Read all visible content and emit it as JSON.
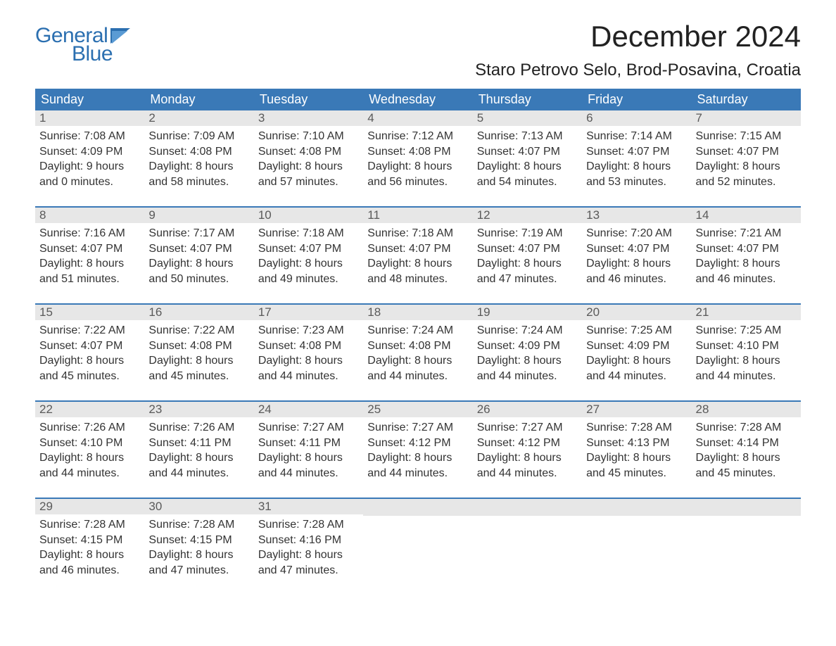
{
  "logo": {
    "general": "General",
    "blue": "Blue",
    "color": "#2b6fb0",
    "flag_color": "#2b6fb0"
  },
  "title": "December 2024",
  "location": "Staro Petrovo Selo, Brod-Posavina, Croatia",
  "colors": {
    "header_bg": "#3a79b7",
    "header_text": "#ffffff",
    "daynum_bg": "#e7e7e7",
    "daynum_text": "#5a5a5a",
    "body_text": "#333333",
    "week_border": "#3a79b7",
    "page_bg": "#ffffff"
  },
  "fonts": {
    "title_size": 42,
    "location_size": 24,
    "header_size": 18,
    "daynum_size": 17,
    "body_size": 16,
    "logo_size": 30
  },
  "day_headers": [
    "Sunday",
    "Monday",
    "Tuesday",
    "Wednesday",
    "Thursday",
    "Friday",
    "Saturday"
  ],
  "weeks": [
    [
      {
        "num": "1",
        "sunrise": "Sunrise: 7:08 AM",
        "sunset": "Sunset: 4:09 PM",
        "dl1": "Daylight: 9 hours",
        "dl2": "and 0 minutes."
      },
      {
        "num": "2",
        "sunrise": "Sunrise: 7:09 AM",
        "sunset": "Sunset: 4:08 PM",
        "dl1": "Daylight: 8 hours",
        "dl2": "and 58 minutes."
      },
      {
        "num": "3",
        "sunrise": "Sunrise: 7:10 AM",
        "sunset": "Sunset: 4:08 PM",
        "dl1": "Daylight: 8 hours",
        "dl2": "and 57 minutes."
      },
      {
        "num": "4",
        "sunrise": "Sunrise: 7:12 AM",
        "sunset": "Sunset: 4:08 PM",
        "dl1": "Daylight: 8 hours",
        "dl2": "and 56 minutes."
      },
      {
        "num": "5",
        "sunrise": "Sunrise: 7:13 AM",
        "sunset": "Sunset: 4:07 PM",
        "dl1": "Daylight: 8 hours",
        "dl2": "and 54 minutes."
      },
      {
        "num": "6",
        "sunrise": "Sunrise: 7:14 AM",
        "sunset": "Sunset: 4:07 PM",
        "dl1": "Daylight: 8 hours",
        "dl2": "and 53 minutes."
      },
      {
        "num": "7",
        "sunrise": "Sunrise: 7:15 AM",
        "sunset": "Sunset: 4:07 PM",
        "dl1": "Daylight: 8 hours",
        "dl2": "and 52 minutes."
      }
    ],
    [
      {
        "num": "8",
        "sunrise": "Sunrise: 7:16 AM",
        "sunset": "Sunset: 4:07 PM",
        "dl1": "Daylight: 8 hours",
        "dl2": "and 51 minutes."
      },
      {
        "num": "9",
        "sunrise": "Sunrise: 7:17 AM",
        "sunset": "Sunset: 4:07 PM",
        "dl1": "Daylight: 8 hours",
        "dl2": "and 50 minutes."
      },
      {
        "num": "10",
        "sunrise": "Sunrise: 7:18 AM",
        "sunset": "Sunset: 4:07 PM",
        "dl1": "Daylight: 8 hours",
        "dl2": "and 49 minutes."
      },
      {
        "num": "11",
        "sunrise": "Sunrise: 7:18 AM",
        "sunset": "Sunset: 4:07 PM",
        "dl1": "Daylight: 8 hours",
        "dl2": "and 48 minutes."
      },
      {
        "num": "12",
        "sunrise": "Sunrise: 7:19 AM",
        "sunset": "Sunset: 4:07 PM",
        "dl1": "Daylight: 8 hours",
        "dl2": "and 47 minutes."
      },
      {
        "num": "13",
        "sunrise": "Sunrise: 7:20 AM",
        "sunset": "Sunset: 4:07 PM",
        "dl1": "Daylight: 8 hours",
        "dl2": "and 46 minutes."
      },
      {
        "num": "14",
        "sunrise": "Sunrise: 7:21 AM",
        "sunset": "Sunset: 4:07 PM",
        "dl1": "Daylight: 8 hours",
        "dl2": "and 46 minutes."
      }
    ],
    [
      {
        "num": "15",
        "sunrise": "Sunrise: 7:22 AM",
        "sunset": "Sunset: 4:07 PM",
        "dl1": "Daylight: 8 hours",
        "dl2": "and 45 minutes."
      },
      {
        "num": "16",
        "sunrise": "Sunrise: 7:22 AM",
        "sunset": "Sunset: 4:08 PM",
        "dl1": "Daylight: 8 hours",
        "dl2": "and 45 minutes."
      },
      {
        "num": "17",
        "sunrise": "Sunrise: 7:23 AM",
        "sunset": "Sunset: 4:08 PM",
        "dl1": "Daylight: 8 hours",
        "dl2": "and 44 minutes."
      },
      {
        "num": "18",
        "sunrise": "Sunrise: 7:24 AM",
        "sunset": "Sunset: 4:08 PM",
        "dl1": "Daylight: 8 hours",
        "dl2": "and 44 minutes."
      },
      {
        "num": "19",
        "sunrise": "Sunrise: 7:24 AM",
        "sunset": "Sunset: 4:09 PM",
        "dl1": "Daylight: 8 hours",
        "dl2": "and 44 minutes."
      },
      {
        "num": "20",
        "sunrise": "Sunrise: 7:25 AM",
        "sunset": "Sunset: 4:09 PM",
        "dl1": "Daylight: 8 hours",
        "dl2": "and 44 minutes."
      },
      {
        "num": "21",
        "sunrise": "Sunrise: 7:25 AM",
        "sunset": "Sunset: 4:10 PM",
        "dl1": "Daylight: 8 hours",
        "dl2": "and 44 minutes."
      }
    ],
    [
      {
        "num": "22",
        "sunrise": "Sunrise: 7:26 AM",
        "sunset": "Sunset: 4:10 PM",
        "dl1": "Daylight: 8 hours",
        "dl2": "and 44 minutes."
      },
      {
        "num": "23",
        "sunrise": "Sunrise: 7:26 AM",
        "sunset": "Sunset: 4:11 PM",
        "dl1": "Daylight: 8 hours",
        "dl2": "and 44 minutes."
      },
      {
        "num": "24",
        "sunrise": "Sunrise: 7:27 AM",
        "sunset": "Sunset: 4:11 PM",
        "dl1": "Daylight: 8 hours",
        "dl2": "and 44 minutes."
      },
      {
        "num": "25",
        "sunrise": "Sunrise: 7:27 AM",
        "sunset": "Sunset: 4:12 PM",
        "dl1": "Daylight: 8 hours",
        "dl2": "and 44 minutes."
      },
      {
        "num": "26",
        "sunrise": "Sunrise: 7:27 AM",
        "sunset": "Sunset: 4:12 PM",
        "dl1": "Daylight: 8 hours",
        "dl2": "and 44 minutes."
      },
      {
        "num": "27",
        "sunrise": "Sunrise: 7:28 AM",
        "sunset": "Sunset: 4:13 PM",
        "dl1": "Daylight: 8 hours",
        "dl2": "and 45 minutes."
      },
      {
        "num": "28",
        "sunrise": "Sunrise: 7:28 AM",
        "sunset": "Sunset: 4:14 PM",
        "dl1": "Daylight: 8 hours",
        "dl2": "and 45 minutes."
      }
    ],
    [
      {
        "num": "29",
        "sunrise": "Sunrise: 7:28 AM",
        "sunset": "Sunset: 4:15 PM",
        "dl1": "Daylight: 8 hours",
        "dl2": "and 46 minutes."
      },
      {
        "num": "30",
        "sunrise": "Sunrise: 7:28 AM",
        "sunset": "Sunset: 4:15 PM",
        "dl1": "Daylight: 8 hours",
        "dl2": "and 47 minutes."
      },
      {
        "num": "31",
        "sunrise": "Sunrise: 7:28 AM",
        "sunset": "Sunset: 4:16 PM",
        "dl1": "Daylight: 8 hours",
        "dl2": "and 47 minutes."
      },
      {
        "empty": true
      },
      {
        "empty": true
      },
      {
        "empty": true
      },
      {
        "empty": true
      }
    ]
  ]
}
